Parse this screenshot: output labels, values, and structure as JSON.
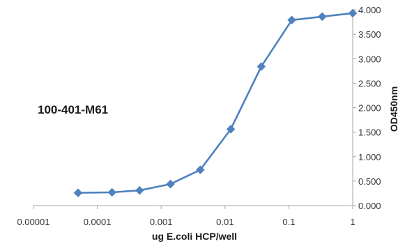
{
  "chart_data": {
    "type": "line",
    "x_scale": "log",
    "x": [
      5e-05,
      0.00017,
      0.00046,
      0.0014,
      0.0041,
      0.0123,
      0.037,
      0.111,
      0.333,
      1
    ],
    "series": [
      {
        "values": [
          0.26,
          0.27,
          0.31,
          0.44,
          0.73,
          1.56,
          2.84,
          3.79,
          3.86,
          3.93
        ],
        "color": "#4e81bd"
      }
    ],
    "xlabel": "ug E.coli HCP/well",
    "ylabel": "OD450nm",
    "xlim": [
      1e-05,
      1
    ],
    "ylim": [
      0,
      4
    ],
    "x_tick_labels": [
      "0.00001",
      "0.0001",
      "0.001",
      "0.01",
      "0.1",
      "1"
    ],
    "y_tick_labels": [
      "0.000",
      "0.500",
      "1.000",
      "1.500",
      "2.000",
      "2.500",
      "3.000",
      "3.500",
      "4.000"
    ],
    "annotation": "100-401-M61",
    "grid": false,
    "legend": "none",
    "y_axis_side": "right"
  }
}
